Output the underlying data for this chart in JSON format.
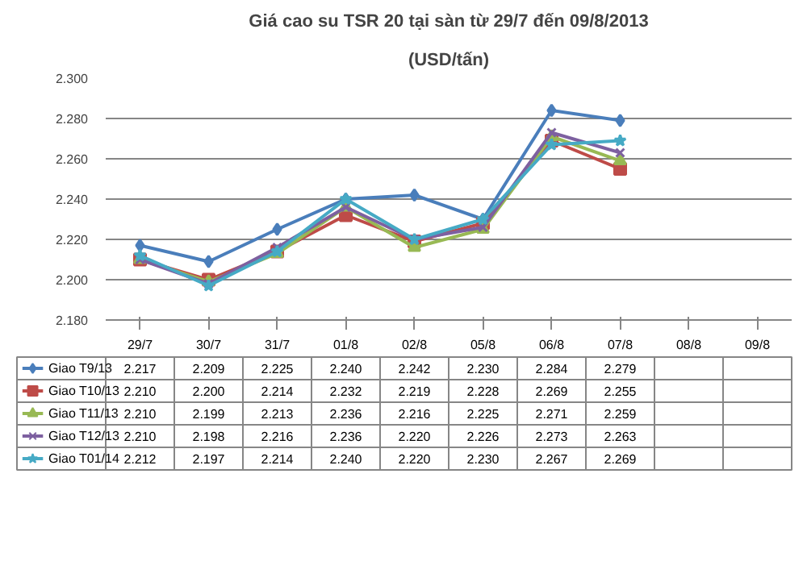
{
  "chart_data": {
    "type": "line",
    "title": "Giá cao su TSR 20 tại sàn từ 29/7 đến 09/8/2013",
    "subtitle": "(USD/tấn)",
    "categories": [
      "29/7",
      "30/7",
      "31/7",
      "01/8",
      "02/8",
      "05/8",
      "06/8",
      "07/8",
      "08/8",
      "09/8"
    ],
    "ylim": [
      2180,
      2300
    ],
    "yticks": [
      {
        "value": 2180,
        "label": "2.180"
      },
      {
        "value": 2200,
        "label": "2.200"
      },
      {
        "value": 2220,
        "label": "2.220"
      },
      {
        "value": 2240,
        "label": "2.240"
      },
      {
        "value": 2260,
        "label": "2.260"
      },
      {
        "value": 2280,
        "label": "2.280"
      },
      {
        "value": 2300,
        "label": "2.300"
      }
    ],
    "grid": "y",
    "legend": "bottom",
    "series": [
      {
        "name": "Giao T9/13",
        "color": "#4a7ebb",
        "marker": "diamond",
        "values": [
          2217,
          2209,
          2225,
          2240,
          2242,
          2230,
          2284,
          2279,
          null,
          null
        ],
        "value_labels": [
          "2.217",
          "2.209",
          "2.225",
          "2.240",
          "2.242",
          "2.230",
          "2.284",
          "2.279",
          null,
          null
        ]
      },
      {
        "name": "Giao T10/13",
        "color": "#be4b48",
        "marker": "square",
        "values": [
          2210,
          2200,
          2214,
          2232,
          2219,
          2228,
          2269,
          2255,
          null,
          null
        ],
        "value_labels": [
          "2.210",
          "2.200",
          "2.214",
          "2.232",
          "2.219",
          "2.228",
          "2.269",
          "2.255",
          null,
          null
        ]
      },
      {
        "name": "Giao T11/13",
        "color": "#98b954",
        "marker": "triangle",
        "values": [
          2210,
          2199,
          2213,
          2236,
          2216,
          2225,
          2271,
          2259,
          null,
          null
        ],
        "value_labels": [
          "2.210",
          "2.199",
          "2.213",
          "2.236",
          "2.216",
          "2.225",
          "2.271",
          "2.259",
          null,
          null
        ]
      },
      {
        "name": "Giao T12/13",
        "color": "#7d60a0",
        "marker": "cross",
        "values": [
          2210,
          2198,
          2216,
          2236,
          2220,
          2226,
          2273,
          2263,
          null,
          null
        ],
        "value_labels": [
          "2.210",
          "2.198",
          "2.216",
          "2.236",
          "2.220",
          "2.226",
          "2.273",
          "2.263",
          null,
          null
        ]
      },
      {
        "name": "Giao T01/14",
        "color": "#46aac5",
        "marker": "star",
        "values": [
          2212,
          2197,
          2214,
          2240,
          2220,
          2230,
          2267,
          2269,
          null,
          null
        ],
        "value_labels": [
          "2.212",
          "2.197",
          "2.214",
          "2.240",
          "2.220",
          "2.230",
          "2.267",
          "2.269",
          null,
          null
        ]
      }
    ]
  }
}
